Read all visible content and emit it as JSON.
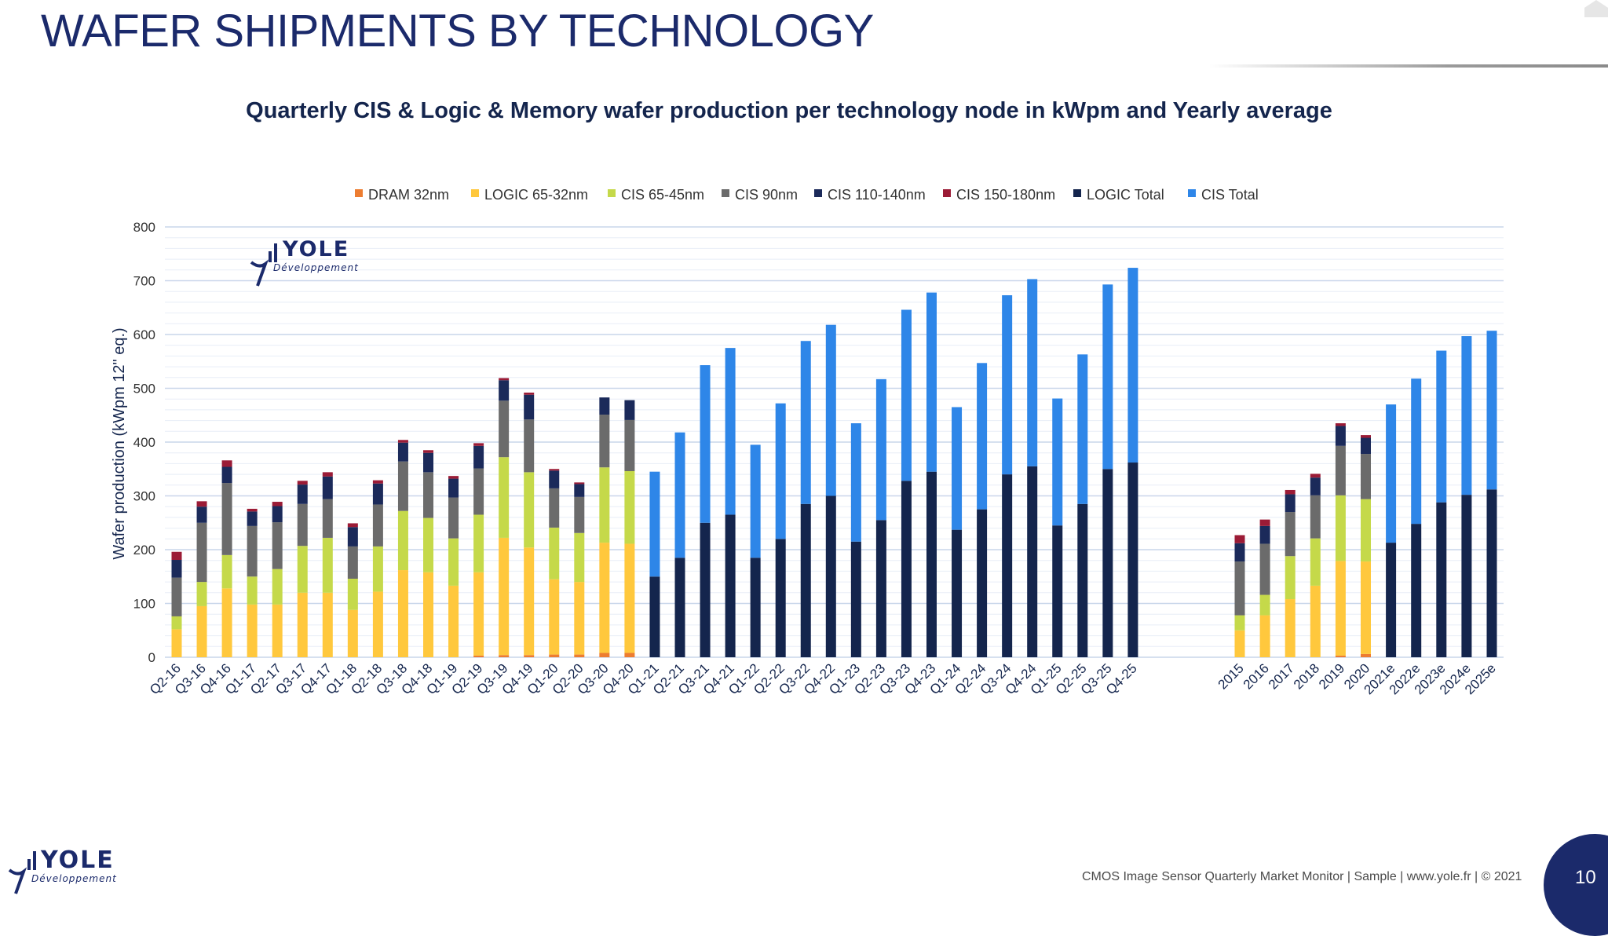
{
  "slide": {
    "title": "WAFER SHIPMENTS BY TECHNOLOGY",
    "footer": "CMOS Image Sensor Quarterly Market Monitor | Sample | www.yole.fr | © 2021",
    "page_number": "10"
  },
  "logo": {
    "name": "YOLE",
    "tagline": "Développement"
  },
  "chart_data": {
    "type": "bar",
    "stacked": true,
    "title": "Quarterly CIS & Logic & Memory wafer production per technology node in kWpm and Yearly average",
    "xlabel": "",
    "ylabel": "Wafer production (kWpm 12\" eq.)",
    "ylim": [
      0,
      800
    ],
    "yticks": [
      "0",
      "100",
      "200",
      "300",
      "400",
      "500",
      "600",
      "700",
      "800"
    ],
    "grid": true,
    "legend_position": "top",
    "colors": {
      "DRAM 32nm": "#ed7d31",
      "LOGIC 65-32nm": "#ffc83d",
      "CIS 65-45nm": "#c5d94a",
      "CIS 90nm": "#6b6b6b",
      "CIS 110-140nm": "#1b2a5a",
      "CIS 150-180nm": "#9b1b36",
      "LOGIC Total": "#14254d",
      "CIS Total": "#2e86e8"
    },
    "categories": [
      "Q2-16",
      "Q3-16",
      "Q4-16",
      "Q1-17",
      "Q2-17",
      "Q3-17",
      "Q4-17",
      "Q1-18",
      "Q2-18",
      "Q3-18",
      "Q4-18",
      "Q1-19",
      "Q2-19",
      "Q3-19",
      "Q4-19",
      "Q1-20",
      "Q2-20",
      "Q3-20",
      "Q4-20",
      "Q1-21",
      "Q2-21",
      "Q3-21",
      "Q4-21",
      "Q1-22",
      "Q2-22",
      "Q3-22",
      "Q4-22",
      "Q1-23",
      "Q2-23",
      "Q3-23",
      "Q4-23",
      "Q1-24",
      "Q2-24",
      "Q3-24",
      "Q4-24",
      "Q1-25",
      "Q2-25",
      "Q3-25",
      "Q4-25",
      "2015",
      "2016",
      "2017",
      "2018",
      "2019",
      "2020",
      "2021e",
      "2022e",
      "2023e",
      "2024e",
      "2025e"
    ],
    "series": [
      {
        "name": "DRAM 32nm",
        "values": [
          0,
          0,
          0,
          0,
          0,
          0,
          0,
          0,
          0,
          0,
          0,
          0,
          3,
          4,
          4,
          5,
          5,
          8,
          8,
          0,
          0,
          0,
          0,
          0,
          0,
          0,
          0,
          0,
          0,
          0,
          0,
          0,
          0,
          0,
          0,
          0,
          0,
          0,
          0,
          0,
          0,
          0,
          0,
          3,
          6,
          0,
          0,
          0,
          0,
          0
        ]
      },
      {
        "name": "LOGIC 65-32nm",
        "values": [
          52,
          95,
          128,
          98,
          98,
          120,
          120,
          88,
          122,
          162,
          158,
          133,
          155,
          218,
          200,
          140,
          135,
          205,
          203,
          0,
          0,
          0,
          0,
          0,
          0,
          0,
          0,
          0,
          0,
          0,
          0,
          0,
          0,
          0,
          0,
          0,
          0,
          0,
          0,
          50,
          78,
          108,
          133,
          176,
          172,
          0,
          0,
          0,
          0,
          0
        ]
      },
      {
        "name": "CIS 65-45nm",
        "values": [
          24,
          45,
          62,
          52,
          66,
          87,
          102,
          58,
          84,
          110,
          101,
          88,
          107,
          150,
          140,
          96,
          91,
          140,
          135,
          0,
          0,
          0,
          0,
          0,
          0,
          0,
          0,
          0,
          0,
          0,
          0,
          0,
          0,
          0,
          0,
          0,
          0,
          0,
          0,
          28,
          38,
          80,
          88,
          122,
          116,
          0,
          0,
          0,
          0,
          0
        ]
      },
      {
        "name": "CIS 90nm",
        "values": [
          72,
          110,
          134,
          94,
          87,
          78,
          72,
          60,
          78,
          92,
          85,
          76,
          86,
          105,
          98,
          73,
          67,
          98,
          95,
          0,
          0,
          0,
          0,
          0,
          0,
          0,
          0,
          0,
          0,
          0,
          0,
          0,
          0,
          0,
          0,
          0,
          0,
          0,
          0,
          100,
          95,
          82,
          80,
          92,
          84,
          0,
          0,
          0,
          0,
          0
        ]
      },
      {
        "name": "CIS 110-140nm",
        "values": [
          33,
          30,
          30,
          27,
          30,
          36,
          42,
          36,
          39,
          35,
          36,
          35,
          42,
          38,
          46,
          33,
          24,
          32,
          37,
          0,
          0,
          0,
          0,
          0,
          0,
          0,
          0,
          0,
          0,
          0,
          0,
          0,
          0,
          0,
          0,
          0,
          0,
          0,
          0,
          34,
          33,
          33,
          33,
          37,
          30,
          0,
          0,
          0,
          0,
          0
        ]
      },
      {
        "name": "CIS 150-180nm",
        "values": [
          15,
          10,
          12,
          5,
          8,
          7,
          8,
          7,
          6,
          5,
          5,
          5,
          5,
          4,
          4,
          3,
          3,
          0,
          0,
          0,
          0,
          0,
          0,
          0,
          0,
          0,
          0,
          0,
          0,
          0,
          0,
          0,
          0,
          0,
          0,
          0,
          0,
          0,
          0,
          15,
          12,
          8,
          7,
          5,
          5,
          0,
          0,
          0,
          0,
          0
        ]
      },
      {
        "name": "LOGIC Total",
        "values": [
          0,
          0,
          0,
          0,
          0,
          0,
          0,
          0,
          0,
          0,
          0,
          0,
          0,
          0,
          0,
          0,
          0,
          0,
          0,
          150,
          185,
          250,
          265,
          185,
          220,
          285,
          300,
          215,
          255,
          328,
          345,
          237,
          275,
          340,
          355,
          245,
          285,
          350,
          362,
          0,
          0,
          0,
          0,
          0,
          0,
          213,
          248,
          288,
          302,
          312
        ]
      },
      {
        "name": "CIS Total",
        "values": [
          0,
          0,
          0,
          0,
          0,
          0,
          0,
          0,
          0,
          0,
          0,
          0,
          0,
          0,
          0,
          0,
          0,
          0,
          0,
          195,
          233,
          293,
          310,
          210,
          252,
          303,
          318,
          220,
          262,
          318,
          333,
          228,
          272,
          333,
          348,
          236,
          278,
          343,
          362,
          0,
          0,
          0,
          0,
          0,
          0,
          257,
          270,
          282,
          295,
          295
        ]
      }
    ]
  }
}
